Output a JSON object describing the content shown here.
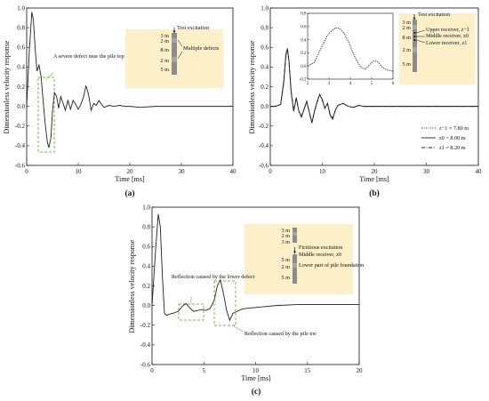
{
  "colors": {
    "inset_fill": "#fdefc8",
    "defect_box": "#6cc04a",
    "line": "#222222",
    "pile_gray": "#8c8c8c"
  },
  "panels": [
    {
      "id": "a",
      "label": "(a)"
    },
    {
      "id": "b",
      "label": "(b)"
    },
    {
      "id": "c",
      "label": "(c)"
    }
  ],
  "chart_data": [
    {
      "panel": "a",
      "type": "line",
      "xlabel": "Time [ms]",
      "ylabel": "Dimensionless velocity response",
      "xlim": [
        0,
        40
      ],
      "ylim": [
        -0.6,
        1.0
      ],
      "xticks": [
        "0",
        "10",
        "20",
        "30",
        "40"
      ],
      "yticks": [
        "-0.6",
        "-0.4",
        "-0.2",
        "0.0",
        "0.2",
        "0.4",
        "0.6",
        "0.8",
        "1.0"
      ],
      "series": [
        {
          "x": [
            0,
            0.5,
            1.0,
            1.3,
            1.7,
            2.0,
            2.4,
            2.8,
            3.2,
            3.6,
            4.0,
            4.3,
            4.7,
            5.0,
            5.4,
            5.8,
            6.2,
            6.6,
            7.0,
            7.5,
            8.0,
            8.5,
            9.0,
            9.5,
            10.0,
            10.5,
            11.0,
            11.5,
            12.0,
            12.5,
            13.0,
            13.5,
            14.0,
            14.5,
            15.0,
            16.0,
            17.0,
            18.0,
            19.0,
            20.0,
            22.0,
            25.0,
            28.0,
            32.0,
            36.0,
            40.0
          ],
          "y": [
            0.0,
            0.55,
            0.96,
            0.88,
            0.55,
            0.36,
            0.42,
            0.3,
            0.05,
            -0.18,
            -0.36,
            -0.42,
            -0.32,
            -0.05,
            0.14,
            0.1,
            -0.02,
            0.1,
            0.04,
            -0.04,
            0.06,
            -0.03,
            0.06,
            0.02,
            -0.03,
            0.02,
            0.09,
            0.21,
            0.12,
            -0.04,
            0.03,
            0.01,
            0.06,
            0.02,
            -0.01,
            0.01,
            0.0,
            0.01,
            0.0,
            0.0,
            -0.01,
            0.0,
            0.0,
            0.0,
            0.0,
            0.0
          ]
        }
      ],
      "annotations": {
        "defect_label": "A severe defect near the pile top",
        "test_excitation": "Test excitation",
        "multiple_defects": "Multiple defects",
        "segments": [
          "3 m",
          "2 m",
          "8 m",
          "2 m",
          "5 m"
        ]
      }
    },
    {
      "panel": "b",
      "type": "line",
      "xlabel": "Time [ms]",
      "ylabel": "Dimensionless velocity response",
      "xlim": [
        0,
        40
      ],
      "ylim": [
        -0.6,
        1.0
      ],
      "xticks": [
        "0",
        "10",
        "20",
        "30",
        "40"
      ],
      "yticks": [
        "-0.6",
        "-0.4",
        "-0.2",
        "0.0",
        "0.2",
        "0.4",
        "0.6",
        "0.8",
        "1.0"
      ],
      "series": [
        {
          "name": "z−1 = 7.80 m",
          "x": [
            0,
            1.0,
            2.0,
            2.6,
            3.0,
            3.3,
            3.6,
            4.0,
            4.5,
            5.0,
            5.5,
            6.0,
            6.5,
            7.0,
            7.5,
            8.0,
            8.5,
            9.0,
            9.5,
            10.0,
            10.5,
            11.0,
            11.5,
            12.0,
            12.5,
            13.0,
            14.0,
            15.0,
            16.0,
            17.0,
            18.0,
            20.0,
            24.0,
            30.0,
            35.0,
            40.0
          ],
          "y": [
            0.0,
            0.0,
            0.02,
            0.25,
            0.52,
            0.58,
            0.45,
            0.15,
            -0.05,
            0.08,
            -0.05,
            -0.1,
            -0.03,
            0.05,
            -0.06,
            -0.16,
            -0.05,
            0.04,
            0.12,
            0.06,
            -0.02,
            0.03,
            -0.08,
            -0.12,
            -0.04,
            0.01,
            0.03,
            0.0,
            -0.01,
            0.01,
            0.0,
            0.0,
            0.0,
            0.0,
            0.0,
            0.0
          ]
        },
        {
          "name": "z0 = 8.00 m",
          "x": [
            0,
            1.0,
            2.0,
            2.6,
            3.0,
            3.3,
            3.6,
            4.0,
            4.5,
            5.0,
            5.5,
            6.0,
            6.5,
            7.0,
            7.5,
            8.0,
            8.5,
            9.0,
            9.5,
            10.0,
            10.5,
            11.0,
            11.5,
            12.0,
            12.5,
            13.0,
            14.0,
            15.0,
            16.0,
            17.0,
            18.0,
            20.0,
            24.0,
            30.0,
            35.0,
            40.0
          ],
          "y": [
            0.0,
            0.0,
            0.02,
            0.26,
            0.53,
            0.59,
            0.46,
            0.15,
            -0.05,
            0.09,
            -0.05,
            -0.11,
            -0.03,
            0.05,
            -0.06,
            -0.17,
            -0.05,
            0.05,
            0.12,
            0.07,
            -0.02,
            0.03,
            -0.09,
            -0.13,
            -0.04,
            0.01,
            0.03,
            0.0,
            -0.01,
            0.01,
            0.0,
            0.0,
            0.0,
            0.0,
            0.0,
            0.0
          ]
        },
        {
          "name": "z1 = 8.20 m",
          "x": [
            0,
            1.0,
            2.0,
            2.6,
            3.0,
            3.3,
            3.6,
            4.0,
            4.5,
            5.0,
            5.5,
            6.0,
            6.5,
            7.0,
            7.5,
            8.0,
            8.5,
            9.0,
            9.5,
            10.0,
            10.5,
            11.0,
            11.5,
            12.0,
            12.5,
            13.0,
            14.0,
            15.0,
            16.0,
            17.0,
            18.0,
            20.0,
            24.0,
            30.0,
            35.0,
            40.0
          ],
          "y": [
            0.0,
            0.0,
            0.02,
            0.24,
            0.51,
            0.57,
            0.45,
            0.16,
            -0.04,
            0.08,
            -0.05,
            -0.1,
            -0.03,
            0.05,
            -0.06,
            -0.16,
            -0.05,
            0.04,
            0.12,
            0.06,
            -0.02,
            0.03,
            -0.08,
            -0.12,
            -0.04,
            0.01,
            0.03,
            0.0,
            -0.01,
            0.01,
            0.0,
            0.0,
            0.0,
            0.0,
            0.0,
            0.0
          ]
        }
      ],
      "inset": {
        "xlim": [
          2,
          6
        ],
        "ylim": [
          -0.2,
          0.8
        ],
        "xticks": [
          "2",
          "3",
          "4",
          "5",
          "6"
        ],
        "yticks": [
          "-0.2",
          "0.0",
          "0.2",
          "0.4",
          "0.6",
          "0.8"
        ],
        "x": [
          2.0,
          2.3,
          2.6,
          2.9,
          3.1,
          3.3,
          3.5,
          3.7,
          3.9,
          4.1,
          4.3,
          4.5,
          4.7,
          4.9,
          5.1,
          5.3,
          5.5,
          5.7,
          6.0
        ],
        "y": [
          0.0,
          0.05,
          0.25,
          0.45,
          0.53,
          0.58,
          0.57,
          0.5,
          0.38,
          0.22,
          0.08,
          -0.02,
          -0.05,
          0.02,
          0.08,
          0.06,
          -0.02,
          -0.06,
          -0.08
        ]
      },
      "annotations": {
        "test_excitation": "Test excitation",
        "upper_receiver": "Upper receiver, z−1",
        "middle_receiver": "Middle receiver, z0",
        "lower_receiver": "Lower receiver, z1",
        "segments": [
          "3 m",
          "2 m",
          "8 m",
          "2 m",
          "5 m"
        ]
      },
      "legend": [
        "z−1 = 7.80 m",
        "z0 = 8.00 m",
        "z1 = 8.20 m"
      ]
    },
    {
      "panel": "c",
      "type": "line",
      "xlabel": "Time [ms]",
      "ylabel": "Dimensionless velocity response",
      "xlim": [
        0,
        20
      ],
      "ylim": [
        -0.6,
        1.0
      ],
      "xticks": [
        "0",
        "5",
        "10",
        "15",
        "20"
      ],
      "yticks": [
        "-0.6",
        "-0.4",
        "-0.2",
        "0.0",
        "0.2",
        "0.4",
        "0.6",
        "0.8",
        "1.0"
      ],
      "series": [
        {
          "x": [
            0,
            0.3,
            0.6,
            0.8,
            1.0,
            1.2,
            1.4,
            1.6,
            2.0,
            2.5,
            3.0,
            3.3,
            3.6,
            4.0,
            4.4,
            4.8,
            5.2,
            5.6,
            6.0,
            6.3,
            6.6,
            6.9,
            7.2,
            7.5,
            7.8,
            8.2,
            8.6,
            9.0,
            10.0,
            11.0,
            12.0,
            14.0,
            16.0,
            18.0,
            20.0
          ],
          "y": [
            0.0,
            0.5,
            0.93,
            0.8,
            0.3,
            -0.08,
            -0.1,
            -0.09,
            -0.08,
            -0.06,
            0.0,
            0.02,
            -0.02,
            -0.06,
            -0.05,
            -0.04,
            -0.05,
            -0.03,
            0.05,
            0.2,
            0.26,
            0.12,
            -0.05,
            -0.15,
            -0.08,
            -0.06,
            -0.04,
            -0.03,
            -0.02,
            -0.01,
            0.0,
            0.01,
            0.01,
            0.01,
            0.01
          ]
        }
      ],
      "annotations": {
        "lower_defect": "Reflection caused by the lower defect",
        "pile_toe": "Reflection caused by the pile toe",
        "fictitious_excitation": "Fictitious excitation",
        "middle_receiver": "Middle receiver, z0",
        "lower_part": "Lower part of pile foundation",
        "segments": [
          "3 m",
          "2 m",
          "3 m",
          "5 m",
          "2 m",
          "5 m"
        ]
      }
    }
  ]
}
